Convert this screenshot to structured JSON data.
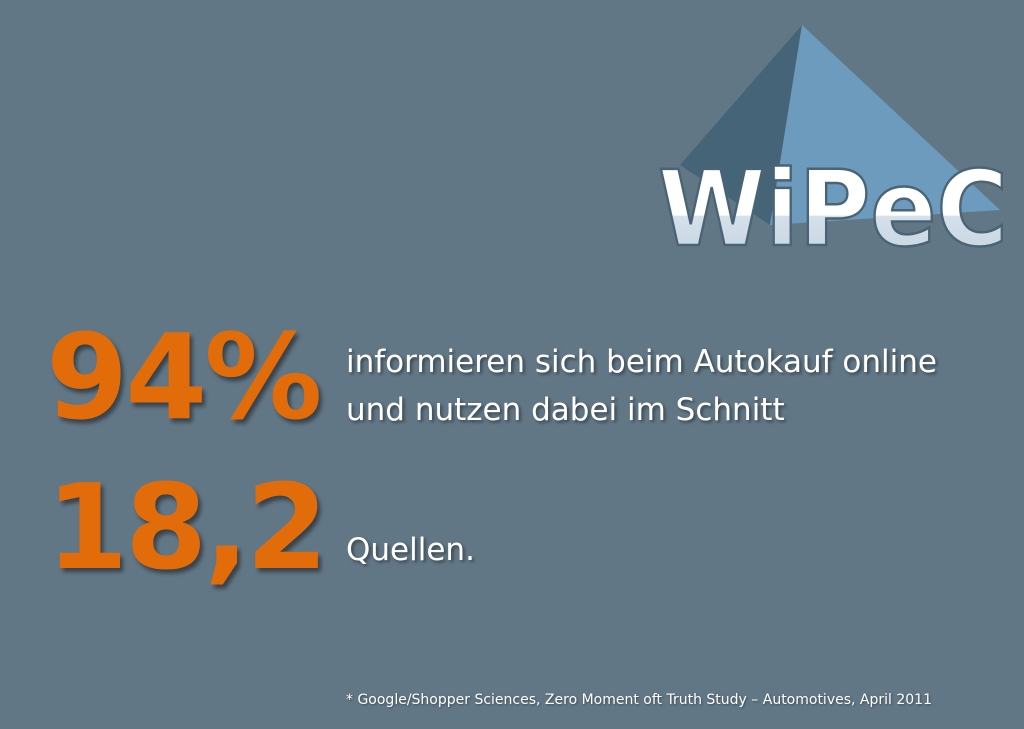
{
  "logo": {
    "text": "WiPeC",
    "colors": {
      "pyramid_light": "#6D9BBE",
      "pyramid_dark": "#466478",
      "letters": "#FFFFFF",
      "letter_shade": "#CFDCE6"
    }
  },
  "stats": {
    "percent": "94%",
    "sources": "18,2"
  },
  "description": {
    "line1": "informieren sich beim Autokauf online",
    "line2": "und nutzen dabei im Schnitt",
    "line3": "Quellen."
  },
  "footnote": "* Google/Shopper Sciences, Zero Moment oft Truth Study – Automotives, April 2011",
  "colors": {
    "background": "#627786",
    "accent": "#E36C0A",
    "text": "#FFFFFF"
  }
}
